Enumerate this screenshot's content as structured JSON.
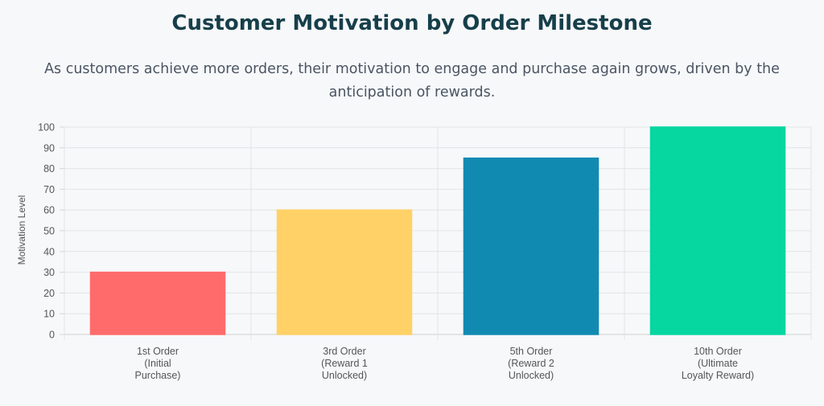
{
  "title": "Customer Motivation by Order Milestone",
  "subtitle": "As customers achieve more orders, their motivation to engage and purchase again grows, driven by the anticipation of rewards.",
  "chart_data": {
    "type": "bar",
    "title": "Customer Motivation by Order Milestone",
    "xlabel": "",
    "ylabel": "Motivation Level",
    "ylim": [
      0,
      100
    ],
    "yticks": [
      0,
      10,
      20,
      30,
      40,
      50,
      60,
      70,
      80,
      90,
      100
    ],
    "grid": true,
    "legend": "none",
    "categories": [
      [
        "1st Order",
        "(Initial",
        "Purchase)"
      ],
      [
        "3rd Order",
        "(Reward 1",
        "Unlocked)"
      ],
      [
        "5th Order",
        "(Reward 2",
        "Unlocked)"
      ],
      [
        "10th Order",
        "(Ultimate",
        "Loyalty Reward)"
      ]
    ],
    "values": [
      30,
      60,
      85,
      100
    ],
    "colors": [
      "#ff6b6b",
      "#ffd166",
      "#118ab2",
      "#06d6a0"
    ]
  }
}
